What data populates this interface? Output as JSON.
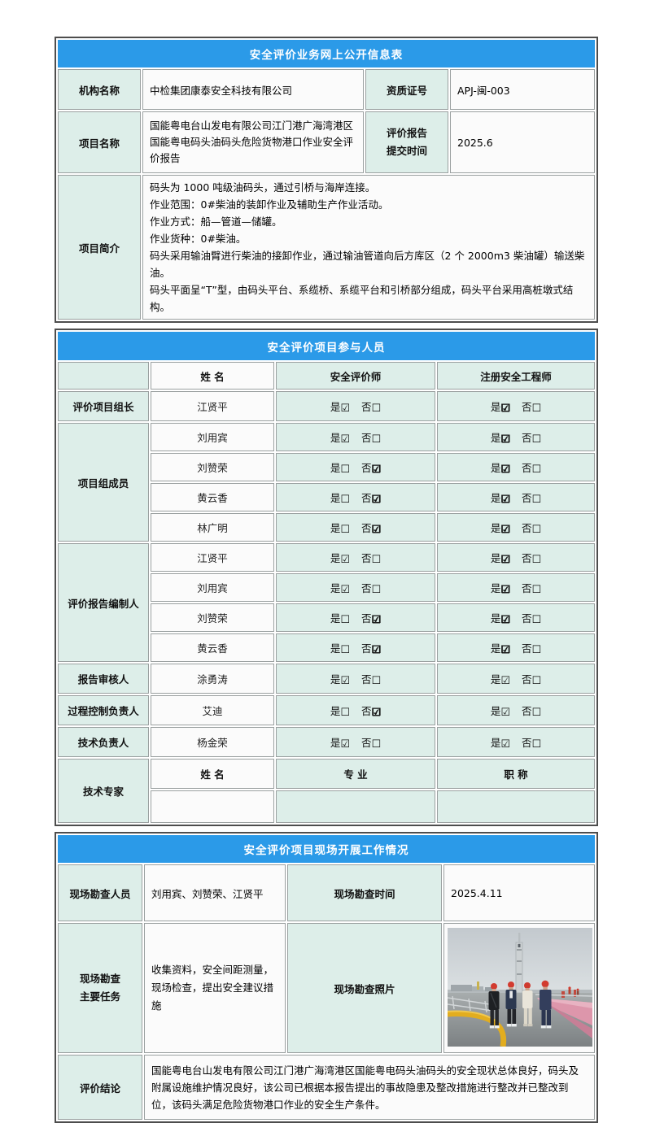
{
  "colors": {
    "accent_blue": "#2b9ae8",
    "label_cell_bg": "#ddeee9",
    "value_cell_bg": "#fbfbfb",
    "outer_border": "#4d4d4d",
    "inner_border": "#9aa0a0"
  },
  "info_table": {
    "title": "安全评价业务网上公开信息表",
    "org_label": "机构名称",
    "org_value": "中检集团康泰安全科技有限公司",
    "cert_label": "资质证号",
    "cert_value": "APJ-闽-003",
    "project_label": "项目名称",
    "project_value": "国能粤电台山发电有限公司江门港广海湾港区国能粤电码头油码头危险货物港口作业安全评价报告",
    "report_time_label_lines": [
      "评价报告",
      "提交时间"
    ],
    "report_time_value": "2025.6",
    "intro_label": "项目简介",
    "intro_lines": [
      "码头为 1000 吨级油码头，通过引桥与海岸连接。",
      "作业范围：0#柴油的装卸作业及辅助生产作业活动。",
      "作业方式：船—管道—储罐。",
      "作业货种：0#柴油。",
      "码头采用输油臂进行柴油的接卸作业，通过输油管道向后方库区（2 个 2000m3 柴油罐）输送柴油。",
      "码头平面呈“T”型，由码头平台、系缆桥、系缆平台和引桥部分组成，码头平台采用高桩墩式结构。"
    ]
  },
  "participants": {
    "title": "安全评价项目参与人员",
    "columns": [
      "",
      "姓 名",
      "安全评价师",
      "注册安全工程师"
    ],
    "yes_label": "是",
    "no_label": "否",
    "checked_glyph": "☑",
    "unchecked_glyph": "☐",
    "rows": [
      {
        "role": "评价项目组长",
        "name": "江贤平",
        "evaluator": {
          "value": "yes",
          "bold": false
        },
        "engineer": {
          "value": "yes",
          "bold": true
        }
      },
      {
        "role": "项目组成员",
        "name": "刘用宾",
        "evaluator": {
          "value": "yes",
          "bold": false
        },
        "engineer": {
          "value": "yes",
          "bold": true
        }
      },
      {
        "role": "",
        "name": "刘赞荣",
        "evaluator": {
          "value": "no",
          "bold": true
        },
        "engineer": {
          "value": "yes",
          "bold": true
        }
      },
      {
        "role": "",
        "name": "黄云香",
        "evaluator": {
          "value": "no",
          "bold": true
        },
        "engineer": {
          "value": "yes",
          "bold": true
        }
      },
      {
        "role": "",
        "name": "林广明",
        "evaluator": {
          "value": "no",
          "bold": true
        },
        "engineer": {
          "value": "yes",
          "bold": true
        }
      },
      {
        "role": "评价报告编制人",
        "name": "江贤平",
        "evaluator": {
          "value": "yes",
          "bold": false
        },
        "engineer": {
          "value": "yes",
          "bold": true
        }
      },
      {
        "role": "",
        "name": "刘用宾",
        "evaluator": {
          "value": "yes",
          "bold": false
        },
        "engineer": {
          "value": "yes",
          "bold": true
        }
      },
      {
        "role": "",
        "name": "刘赞荣",
        "evaluator": {
          "value": "no",
          "bold": true
        },
        "engineer": {
          "value": "yes",
          "bold": true
        }
      },
      {
        "role": "",
        "name": "黄云香",
        "evaluator": {
          "value": "no",
          "bold": true
        },
        "engineer": {
          "value": "yes",
          "bold": true
        }
      },
      {
        "role": "报告审核人",
        "name": "涂勇涛",
        "evaluator": {
          "value": "yes",
          "bold": false
        },
        "engineer": {
          "value": "yes",
          "bold": false
        }
      },
      {
        "role": "过程控制负责人",
        "name": "艾迪",
        "evaluator": {
          "value": "no",
          "bold": true
        },
        "engineer": {
          "value": "yes",
          "bold": false
        }
      },
      {
        "role": "技术负责人",
        "name": "杨金荣",
        "evaluator": {
          "value": "yes",
          "bold": false
        },
        "engineer": {
          "value": "yes",
          "bold": false
        }
      }
    ],
    "expert_label": "技术专家",
    "expert_columns": [
      "姓 名",
      "专 业",
      "职 称"
    ],
    "expert_empty_row": [
      "",
      "",
      ""
    ]
  },
  "site": {
    "title": "安全评价项目现场开展工作情况",
    "surveyors_label": "现场勘查人员",
    "surveyors_value": "刘用宾、刘赞荣、江贤平",
    "time_label": "现场勘查时间",
    "time_value": "2025.4.11",
    "tasks_label_lines": [
      "现场勘查",
      "主要任务"
    ],
    "tasks_value": "收集资料，安全间距测量，现场检查，提出安全建议措施",
    "photo_label": "现场勘查照片",
    "conclusion_label": "评价结论",
    "conclusion_value": "国能粤电台山发电有限公司江门港广海湾港区国能粤电码头油码头的安全现状总体良好，码头及附属设施维护情况良好，该公司已根据本报告提出的事故隐患及整改措施进行整改并已整改到位，该码头满足危险货物港口作业的安全生产条件。"
  }
}
